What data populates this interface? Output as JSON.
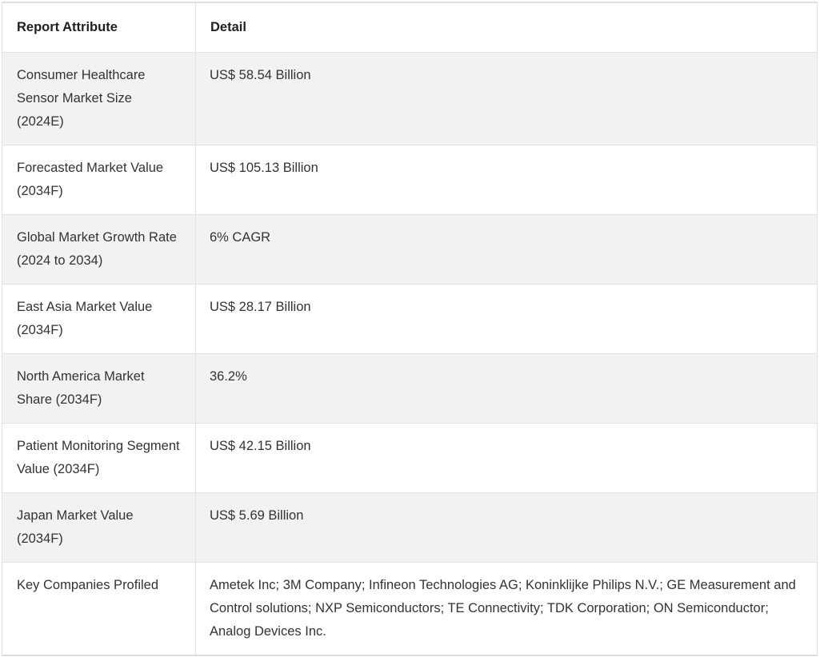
{
  "table": {
    "headers": {
      "attribute": "Report Attribute",
      "detail": "Detail"
    },
    "rows": [
      {
        "attribute": "Consumer Healthcare Sensor Market Size (2024E)",
        "detail": "US$ 58.54 Billion"
      },
      {
        "attribute": "Forecasted Market Value (2034F)",
        "detail": "US$ 105.13 Billion"
      },
      {
        "attribute": "Global Market Growth Rate (2024 to 2034)",
        "detail": "6% CAGR"
      },
      {
        "attribute": "East Asia Market Value (2034F)",
        "detail": "US$ 28.17 Billion"
      },
      {
        "attribute": "North America Market Share (2034F)",
        "detail": "36.2%"
      },
      {
        "attribute": "Patient Monitoring Segment Value (2034F)",
        "detail": "US$ 42.15 Billion"
      },
      {
        "attribute": "Japan Market Value (2034F)",
        "detail": "US$ 5.69 Billion"
      },
      {
        "attribute": "Key Companies Profiled",
        "detail": "Ametek Inc; 3M Company; Infineon Technologies AG; Koninklijke Philips N.V.; GE Measurement and Control solutions; NXP Semiconductors; TE Connectivity; TDK Corporation; ON Semiconductor; Analog Devices Inc."
      }
    ],
    "colors": {
      "stripe_row_background": "#f2f2f2",
      "border": "#e3e3e3",
      "text": "#333333",
      "header_text": "#1f1f1f"
    }
  }
}
